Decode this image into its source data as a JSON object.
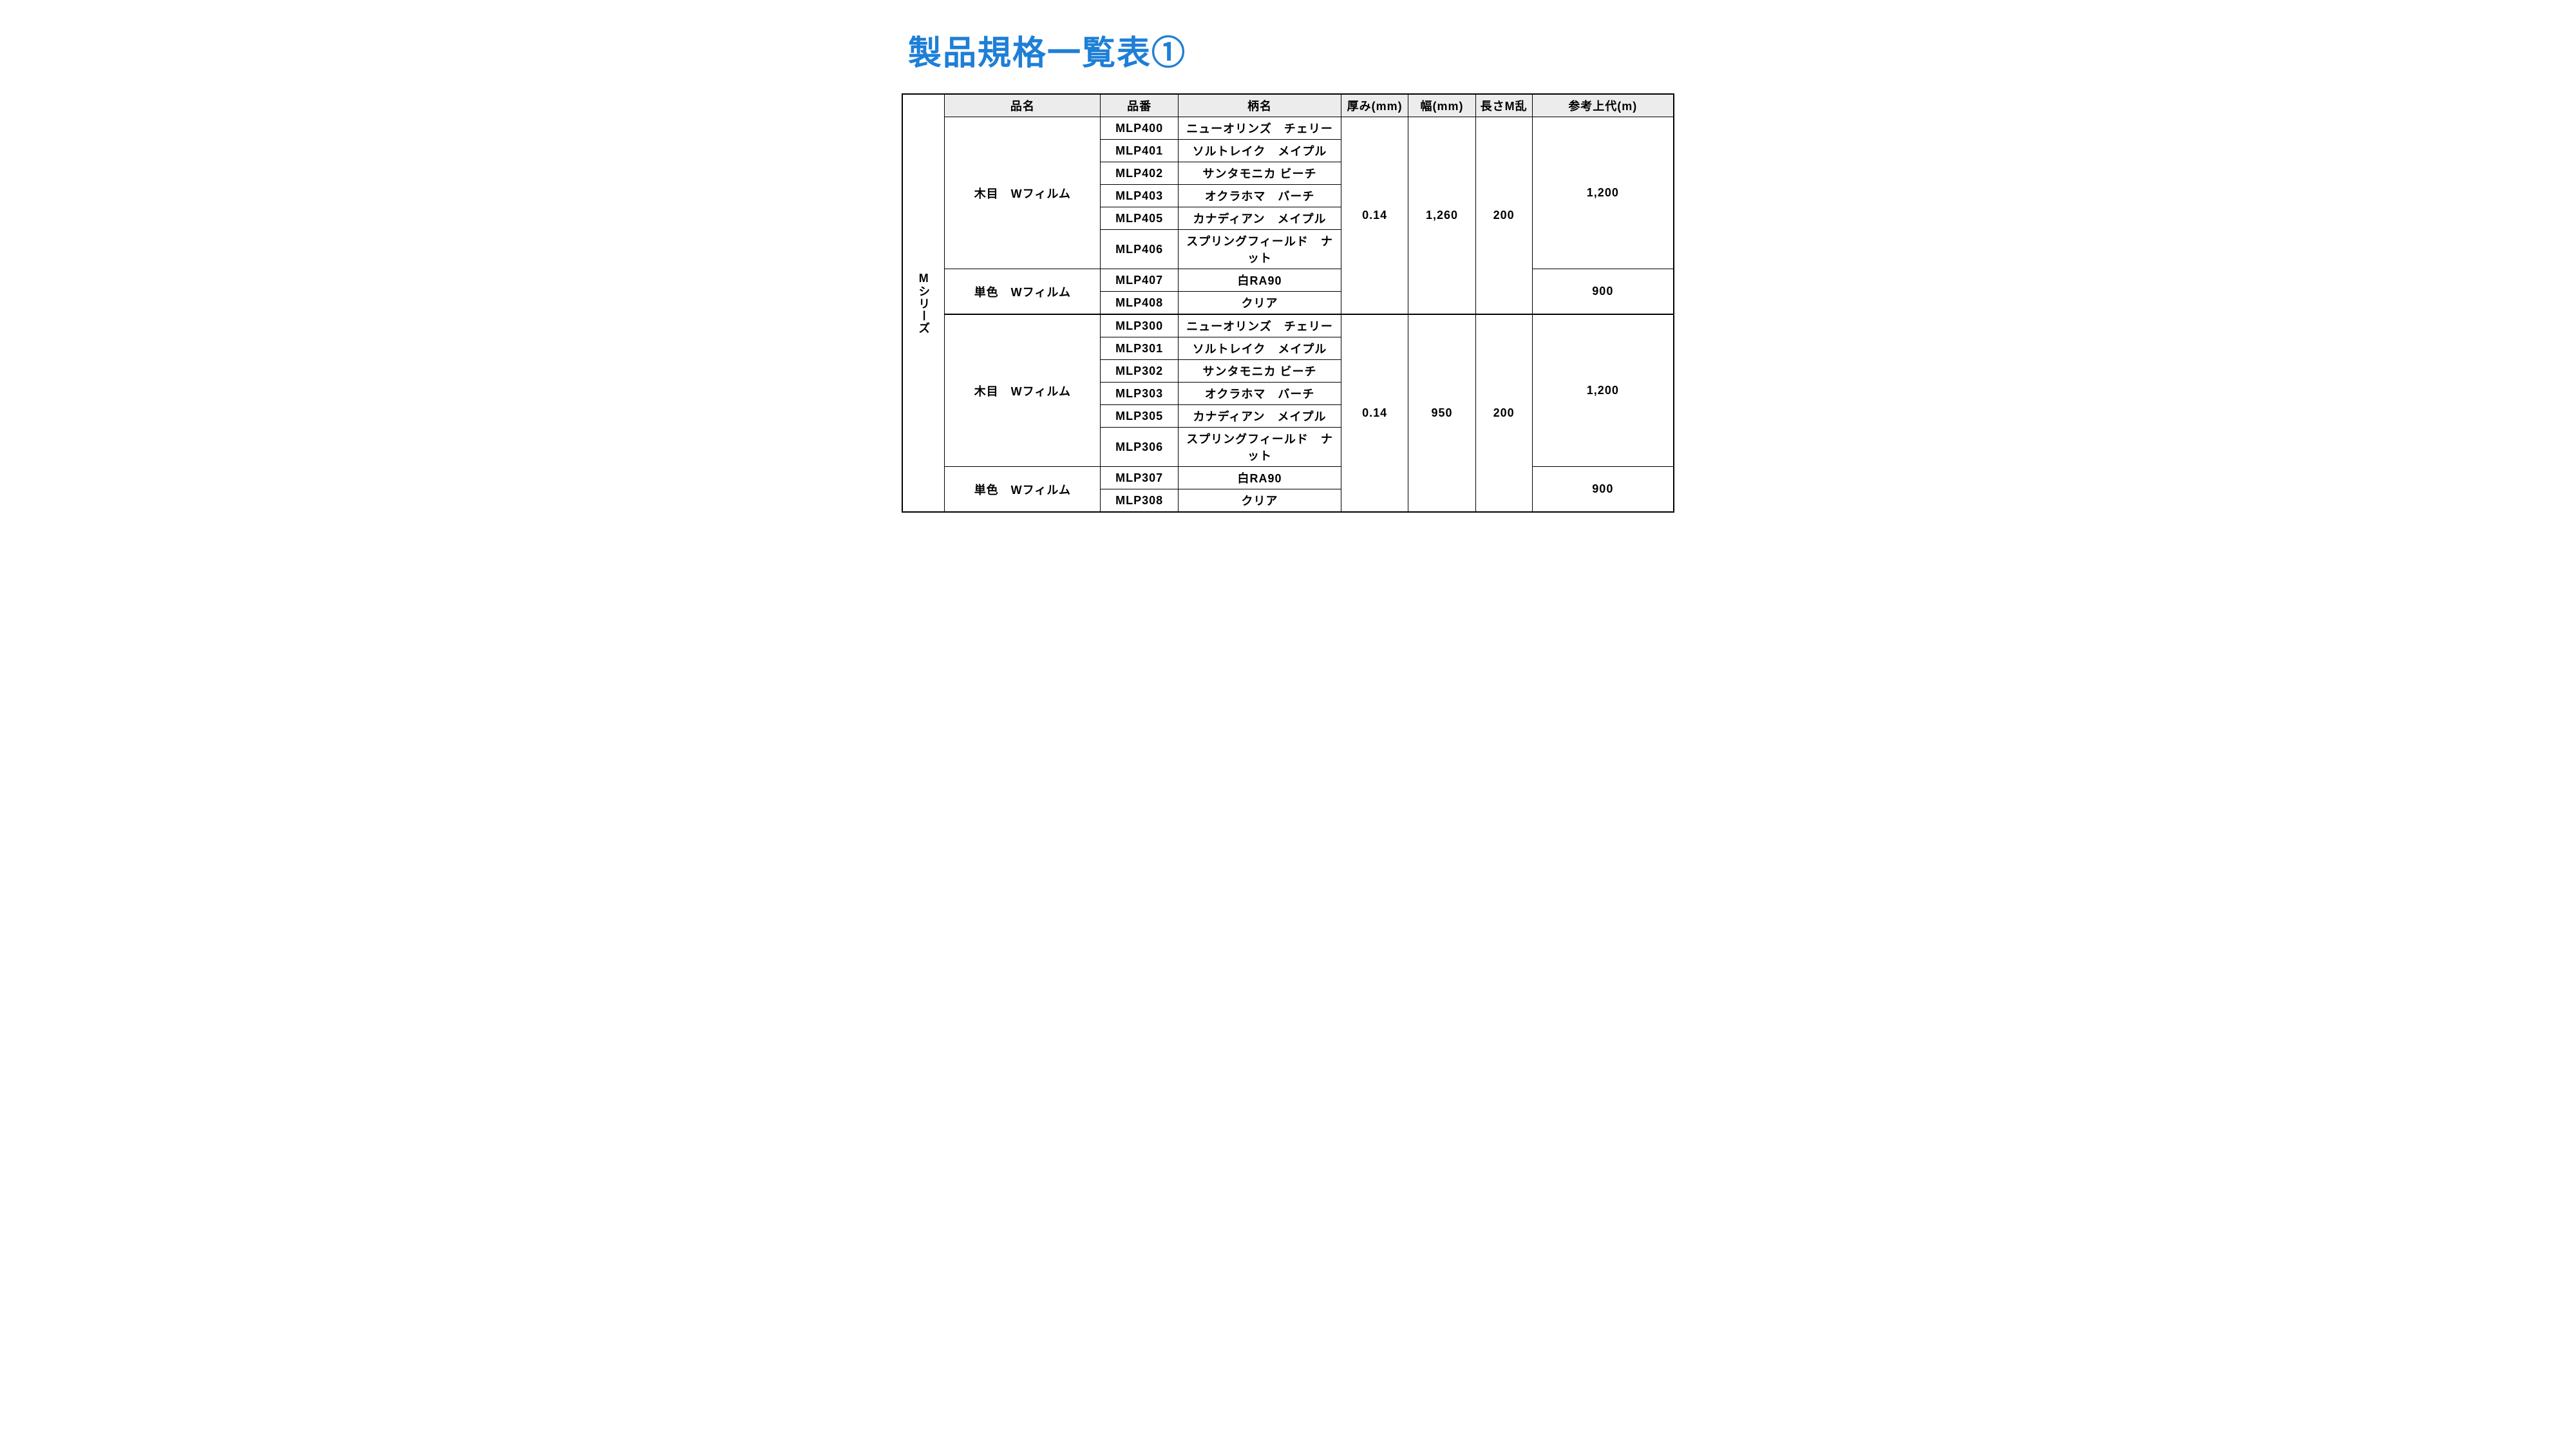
{
  "title": "製品規格一覧表①",
  "colors": {
    "title": "#1e7fd6",
    "header_bg": "#ececec",
    "border": "#000000",
    "background": "#ffffff"
  },
  "table": {
    "series_label": "Mシリーズ",
    "columns": {
      "name": "品名",
      "code": "品番",
      "pattern": "柄名",
      "thickness": "厚み(mm)",
      "width": "幅(mm)",
      "length": "長さM乱",
      "price": "参考上代(m)"
    },
    "blocks": [
      {
        "thickness": "0.14",
        "width": "1,260",
        "length": "200",
        "groups": [
          {
            "name": "木目　Wフィルム",
            "price": "1,200",
            "items": [
              {
                "code": "MLP400",
                "pattern": "ニューオリンズ　チェリー"
              },
              {
                "code": "MLP401",
                "pattern": "ソルトレイク　メイプル"
              },
              {
                "code": "MLP402",
                "pattern": "サンタモニカ ビーチ"
              },
              {
                "code": "MLP403",
                "pattern": "オクラホマ　バーチ"
              },
              {
                "code": "MLP405",
                "pattern": "カナディアン　メイプル"
              },
              {
                "code": "MLP406",
                "pattern": "スプリングフィールド　ナット"
              }
            ]
          },
          {
            "name": "単色　Wフィルム",
            "price": "900",
            "items": [
              {
                "code": "MLP407",
                "pattern": "白RA90"
              },
              {
                "code": "MLP408",
                "pattern": "クリア"
              }
            ]
          }
        ]
      },
      {
        "thickness": "0.14",
        "width": "950",
        "length": "200",
        "groups": [
          {
            "name": "木目　Wフィルム",
            "price": "1,200",
            "items": [
              {
                "code": "MLP300",
                "pattern": "ニューオリンズ　チェリー"
              },
              {
                "code": "MLP301",
                "pattern": "ソルトレイク　メイプル"
              },
              {
                "code": "MLP302",
                "pattern": "サンタモニカ ビーチ"
              },
              {
                "code": "MLP303",
                "pattern": "オクラホマ　バーチ"
              },
              {
                "code": "MLP305",
                "pattern": "カナディアン　メイプル"
              },
              {
                "code": "MLP306",
                "pattern": "スプリングフィールド　ナット"
              }
            ]
          },
          {
            "name": "単色　Wフィルム",
            "price": "900",
            "items": [
              {
                "code": "MLP307",
                "pattern": "白RA90"
              },
              {
                "code": "MLP308",
                "pattern": "クリア"
              }
            ]
          }
        ]
      }
    ]
  }
}
